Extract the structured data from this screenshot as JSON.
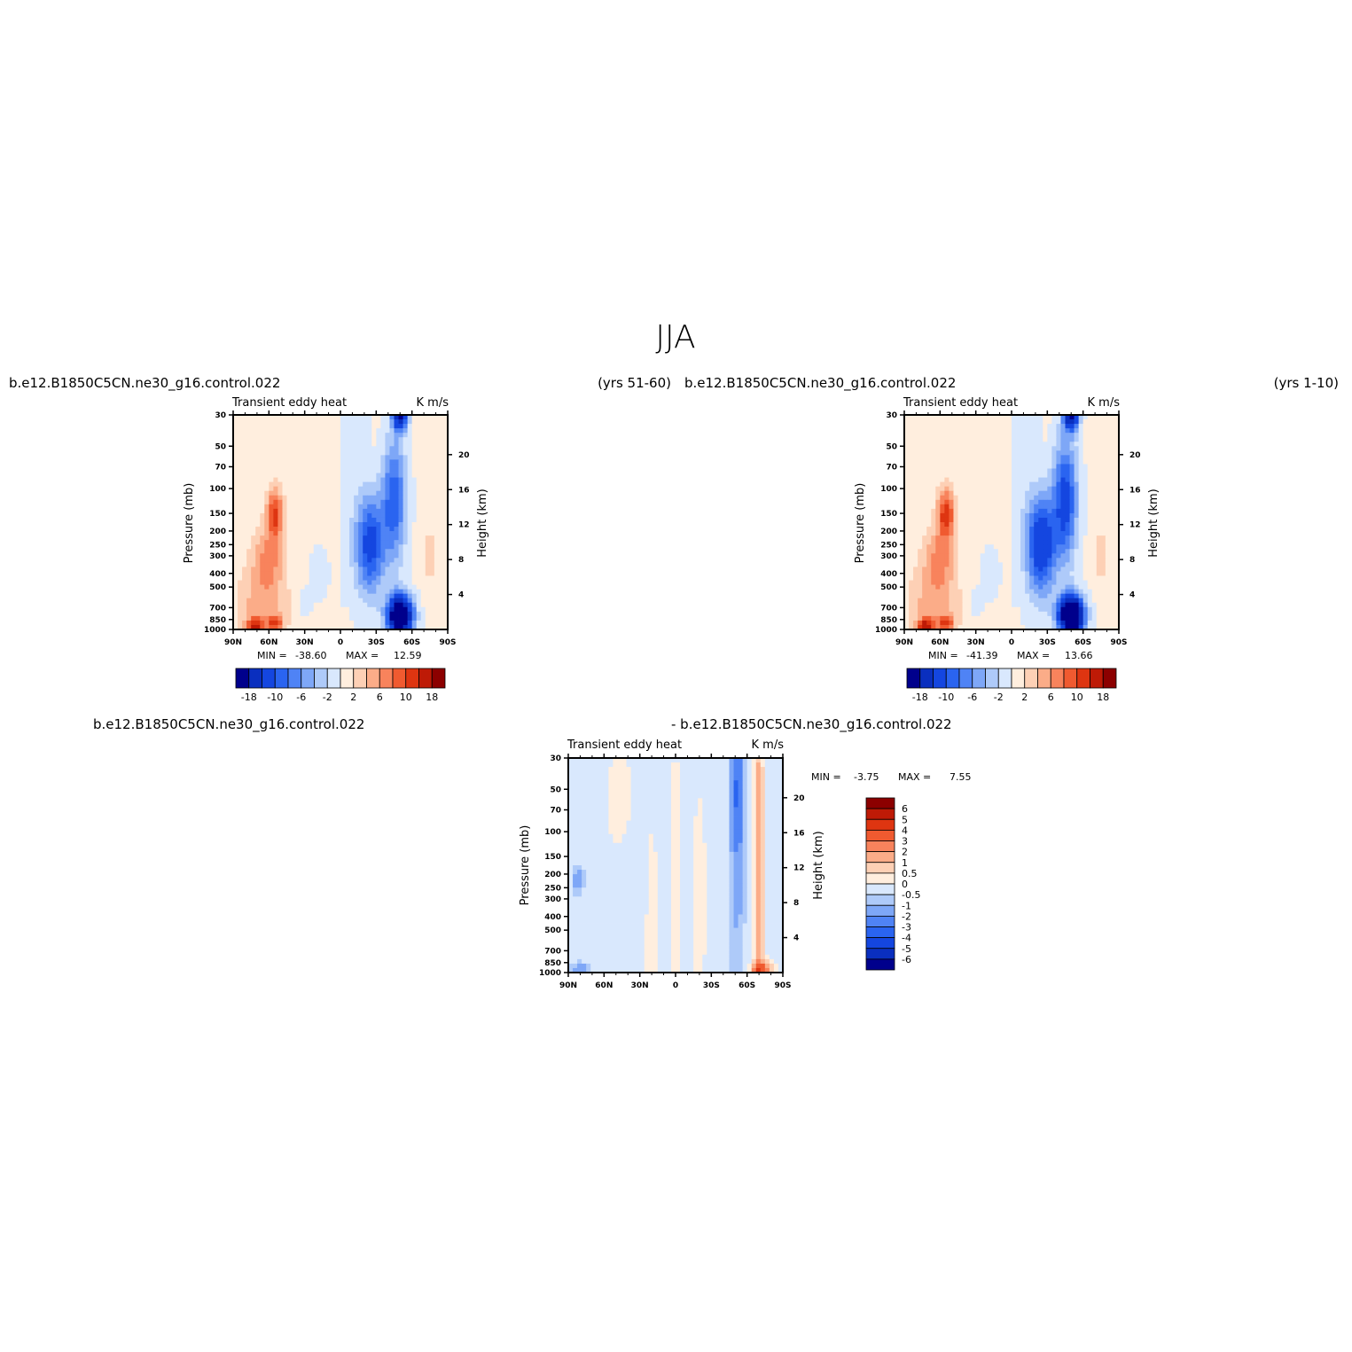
{
  "page": {
    "title": "JJA"
  },
  "chart_data": [
    {
      "type": "heatmap",
      "panel": "left",
      "case": "b.e12.B1850C5CN.ne30_g16.control.022",
      "years": "(yrs 51-60)",
      "title": "Transient eddy heat",
      "units": "K m/s",
      "ylabel": "Pressure (mb)",
      "ylabel_right": "Height (km)",
      "x_ticks": [
        "90N",
        "60N",
        "30N",
        "0",
        "30S",
        "60S",
        "90S"
      ],
      "y_ticks": [
        "30",
        "50",
        "70",
        "100",
        "150",
        "200",
        "250",
        "300",
        "400",
        "500",
        "700",
        "850",
        "1000"
      ],
      "y_ticks_right": [
        "20",
        "16",
        "12",
        "8",
        "4"
      ],
      "stats": {
        "min_label": "MIN =",
        "min": "-38.60",
        "max_label": "MAX =",
        "max": "12.59"
      },
      "colorbar_labels": [
        "-18",
        "-10",
        "-6",
        "-2",
        "2",
        "6",
        "10",
        "18"
      ],
      "colors": [
        "#00008c",
        "#0a2fbf",
        "#1446e0",
        "#2a64f0",
        "#4f83f5",
        "#7ea7f7",
        "#aecaf9",
        "#d9e8fd",
        "#ffeede",
        "#fdd0b5",
        "#fbac88",
        "#f8835c",
        "#f05a30",
        "#de3511",
        "#be1a06",
        "#8c0000"
      ],
      "blobs": [
        {
          "lat": 65,
          "p": 700,
          "w": 20,
          "h": 20,
          "v": 5
        },
        {
          "lat": 60,
          "p": 300,
          "w": 12,
          "h": 12,
          "v": 5
        },
        {
          "lat": 55,
          "p": 150,
          "w": 7,
          "h": 10,
          "v": 10
        },
        {
          "lat": 72,
          "p": 950,
          "w": 6,
          "h": 3,
          "v": 12
        },
        {
          "lat": 55,
          "p": 900,
          "w": 6,
          "h": 2.5,
          "v": 9
        },
        {
          "lat": 18,
          "p": 400,
          "w": 8,
          "h": 10,
          "v": -2
        },
        {
          "lat": 30,
          "p": 650,
          "w": 5,
          "h": 6,
          "v": -2
        },
        {
          "lat": -10,
          "p": 100,
          "w": 10,
          "h": 50,
          "v": -1
        },
        {
          "lat": -25,
          "p": 250,
          "w": 12,
          "h": 20,
          "v": -12
        },
        {
          "lat": -50,
          "p": 30,
          "w": 6,
          "h": 6,
          "v": -20
        },
        {
          "lat": -50,
          "p": 800,
          "w": 10,
          "h": 8,
          "v": -30
        },
        {
          "lat": -45,
          "p": 120,
          "w": 10,
          "h": 25,
          "v": -10
        },
        {
          "lat": -75,
          "p": 300,
          "w": 6,
          "h": 10,
          "v": 3
        }
      ]
    },
    {
      "type": "heatmap",
      "panel": "right",
      "case": "b.e12.B1850C5CN.ne30_g16.control.022",
      "years": "(yrs 1-10)",
      "title": "Transient eddy heat",
      "units": "K m/s",
      "ylabel": "Pressure (mb)",
      "ylabel_right": "Height (km)",
      "x_ticks": [
        "90N",
        "60N",
        "30N",
        "0",
        "30S",
        "60S",
        "90S"
      ],
      "y_ticks": [
        "30",
        "50",
        "70",
        "100",
        "150",
        "200",
        "250",
        "300",
        "400",
        "500",
        "700",
        "850",
        "1000"
      ],
      "y_ticks_right": [
        "20",
        "16",
        "12",
        "8",
        "4"
      ],
      "stats": {
        "min_label": "MIN =",
        "min": "-41.39",
        "max_label": "MAX =",
        "max": "13.66"
      },
      "colorbar_labels": [
        "-18",
        "-10",
        "-6",
        "-2",
        "2",
        "6",
        "10",
        "18"
      ],
      "colors": [
        "#00008c",
        "#0a2fbf",
        "#1446e0",
        "#2a64f0",
        "#4f83f5",
        "#7ea7f7",
        "#aecaf9",
        "#d9e8fd",
        "#ffeede",
        "#fdd0b5",
        "#fbac88",
        "#f8835c",
        "#f05a30",
        "#de3511",
        "#be1a06",
        "#8c0000"
      ],
      "blobs": [
        {
          "lat": 65,
          "p": 700,
          "w": 20,
          "h": 20,
          "v": 5
        },
        {
          "lat": 60,
          "p": 300,
          "w": 12,
          "h": 12,
          "v": 5
        },
        {
          "lat": 55,
          "p": 150,
          "w": 7,
          "h": 10,
          "v": 11
        },
        {
          "lat": 72,
          "p": 950,
          "w": 6,
          "h": 3,
          "v": 13
        },
        {
          "lat": 55,
          "p": 900,
          "w": 6,
          "h": 2.5,
          "v": 9
        },
        {
          "lat": 18,
          "p": 400,
          "w": 8,
          "h": 10,
          "v": -2
        },
        {
          "lat": 30,
          "p": 650,
          "w": 5,
          "h": 6,
          "v": -2
        },
        {
          "lat": -10,
          "p": 100,
          "w": 10,
          "h": 50,
          "v": -1
        },
        {
          "lat": -25,
          "p": 250,
          "w": 12,
          "h": 20,
          "v": -14
        },
        {
          "lat": -50,
          "p": 30,
          "w": 6,
          "h": 6,
          "v": -20
        },
        {
          "lat": -50,
          "p": 800,
          "w": 10,
          "h": 8,
          "v": -32
        },
        {
          "lat": -45,
          "p": 120,
          "w": 10,
          "h": 25,
          "v": -12
        },
        {
          "lat": -75,
          "p": 300,
          "w": 6,
          "h": 10,
          "v": 3
        }
      ]
    },
    {
      "type": "heatmap",
      "panel": "difference",
      "case_left": "b.e12.B1850C5CN.ne30_g16.control.022",
      "case_right": "- b.e12.B1850C5CN.ne30_g16.control.022",
      "title": "Transient eddy heat",
      "units": "K m/s",
      "ylabel": "Pressure (mb)",
      "ylabel_right": "Height (km)",
      "x_ticks": [
        "90N",
        "60N",
        "30N",
        "0",
        "30S",
        "60S",
        "90S"
      ],
      "y_ticks": [
        "30",
        "50",
        "70",
        "100",
        "150",
        "200",
        "250",
        "300",
        "400",
        "500",
        "700",
        "850",
        "1000"
      ],
      "y_ticks_right": [
        "20",
        "16",
        "12",
        "8",
        "4"
      ],
      "stats": {
        "min_label": "MIN =",
        "min": "-3.75",
        "max_label": "MAX =",
        "max": "7.55"
      },
      "colorbar_labels": [
        "6",
        "5",
        "4",
        "3",
        "2",
        "1",
        "0.5",
        "0",
        "-0.5",
        "-1",
        "-2",
        "-3",
        "-4",
        "-5",
        "-6"
      ],
      "colors": [
        "#8c0000",
        "#be1a06",
        "#de3511",
        "#f05a30",
        "#f8835c",
        "#fbac88",
        "#fdd0b5",
        "#ffeede",
        "#d9e8fd",
        "#aecaf9",
        "#7ea7f7",
        "#4f83f5",
        "#2a64f0",
        "#1446e0",
        "#0a2fbf",
        "#00008c"
      ],
      "blobs": [
        {
          "lat": 45,
          "p": 60,
          "w": 12,
          "h": 20,
          "v": 0.6
        },
        {
          "lat": 20,
          "p": 500,
          "w": 5,
          "h": 40,
          "v": 0.6
        },
        {
          "lat": 0,
          "p": 300,
          "w": 3,
          "h": 60,
          "v": 0.7
        },
        {
          "lat": -20,
          "p": 300,
          "w": 5,
          "h": 40,
          "v": 0.6
        },
        {
          "lat": -70,
          "p": 200,
          "w": 4,
          "h": 60,
          "v": 2.2
        },
        {
          "lat": -72,
          "p": 950,
          "w": 8,
          "h": 3,
          "v": 3.5
        },
        {
          "lat": -52,
          "p": 50,
          "w": 5,
          "h": 30,
          "v": -2.5
        },
        {
          "lat": -52,
          "p": 300,
          "w": 6,
          "h": 80,
          "v": -0.8
        },
        {
          "lat": 82,
          "p": 220,
          "w": 5,
          "h": 6,
          "v": -1.2
        },
        {
          "lat": 80,
          "p": 960,
          "w": 8,
          "h": 3,
          "v": -1.3
        },
        {
          "lat": 35,
          "p": 150,
          "w": 10,
          "h": 40,
          "v": -0.3
        }
      ]
    }
  ]
}
